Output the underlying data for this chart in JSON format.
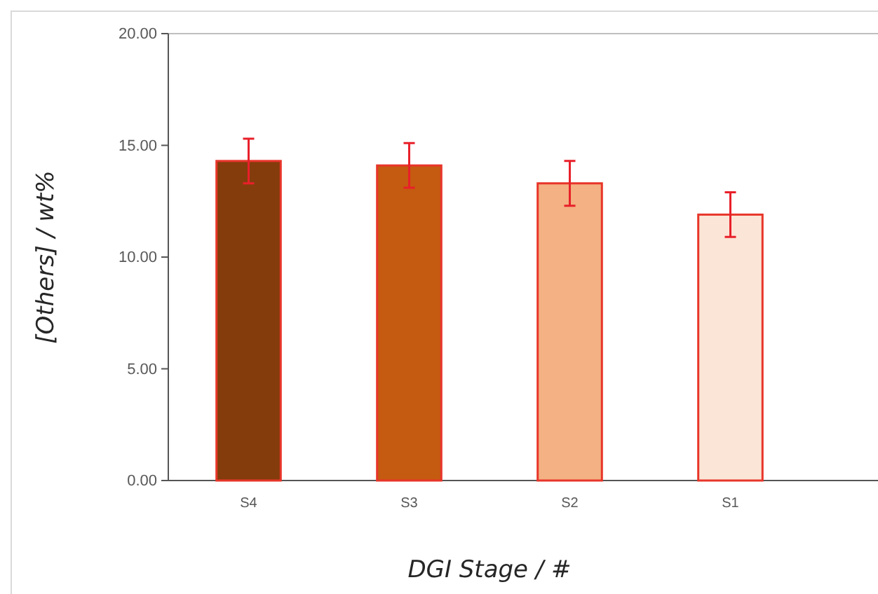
{
  "chart_data": {
    "type": "bar",
    "xlabel": "DGI Stage / #",
    "ylabel": "[Others] / wt%",
    "categories": [
      "S4",
      "S3",
      "S2",
      "S1"
    ],
    "values": [
      14.3,
      14.1,
      13.3,
      11.9
    ],
    "errors": [
      1.0,
      1.0,
      1.0,
      1.0
    ],
    "colors": [
      "#843c0c",
      "#c55a11",
      "#f4b183",
      "#fbe5d6"
    ],
    "ylim": [
      0,
      20
    ],
    "yticks": [
      {
        "value": 0,
        "label": "0.00"
      },
      {
        "value": 5,
        "label": "5.00"
      },
      {
        "value": 10,
        "label": "10.00"
      },
      {
        "value": 15,
        "label": "15.00"
      },
      {
        "value": 20,
        "label": "20.00"
      }
    ],
    "grid": false
  }
}
